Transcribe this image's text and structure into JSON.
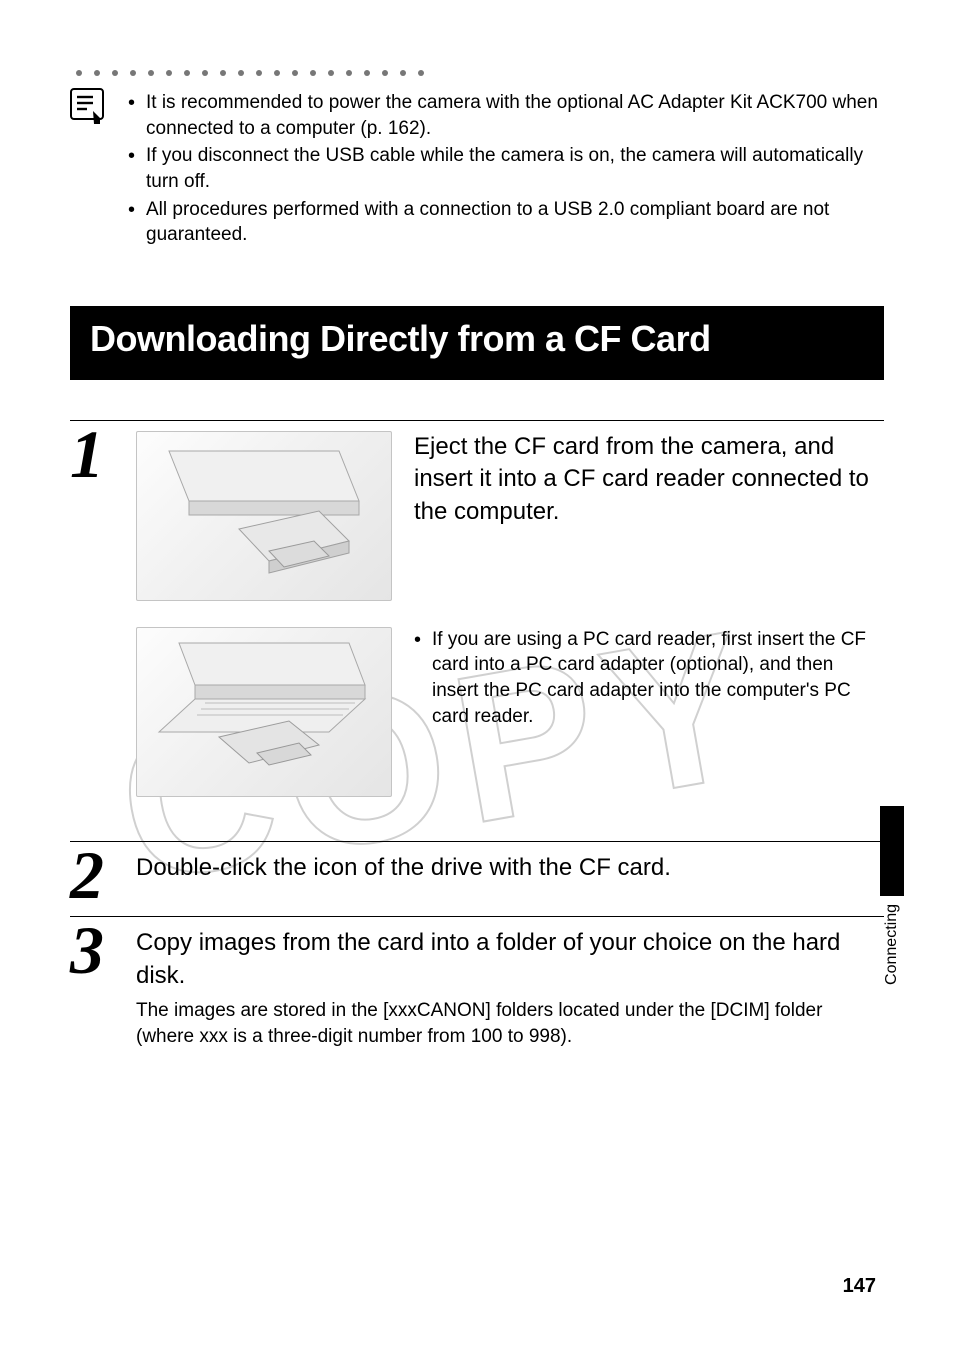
{
  "notes": {
    "items": [
      "It is recommended to power the camera with the optional AC Adapter Kit ACK700 when connected to a computer (p. 162).",
      "If you disconnect the USB cable while the camera is on, the camera will automatically turn off.",
      "All procedures performed with a connection to a USB 2.0 compliant board are not guaranteed."
    ]
  },
  "section": {
    "title": "Downloading Directly from a CF Card"
  },
  "steps": {
    "s1": {
      "num": "1",
      "lead": "Eject the CF card from the camera, and insert it into a CF card reader connected to the computer.",
      "sub": "If you are using a PC card reader, first insert the CF card into a PC card adapter (optional), and then insert the PC card adapter into the computer's PC card reader."
    },
    "s2": {
      "num": "2",
      "lead": "Double-click the icon of the drive with the CF card."
    },
    "s3": {
      "num": "3",
      "lead": "Copy images from the card into a folder of your choice on the hard disk.",
      "detail": "The images are stored in the [xxxCANON] folders located under the [DCIM] folder (where xxx is a three-digit number from 100 to 998)."
    }
  },
  "sidebar": {
    "label": "Connecting"
  },
  "page": {
    "number": "147"
  },
  "style": {
    "dot_count": 20,
    "colors": {
      "text": "#000000",
      "bg": "#ffffff",
      "title_bg": "#000000",
      "title_fg": "#ffffff",
      "watermark_stroke": "#d0d0d0",
      "illust_border": "#c4c4c4"
    },
    "fonts": {
      "body_size_pt": 14,
      "lead_size_pt": 18,
      "title_size_pt": 27,
      "stepnum_size_pt": 51
    }
  }
}
